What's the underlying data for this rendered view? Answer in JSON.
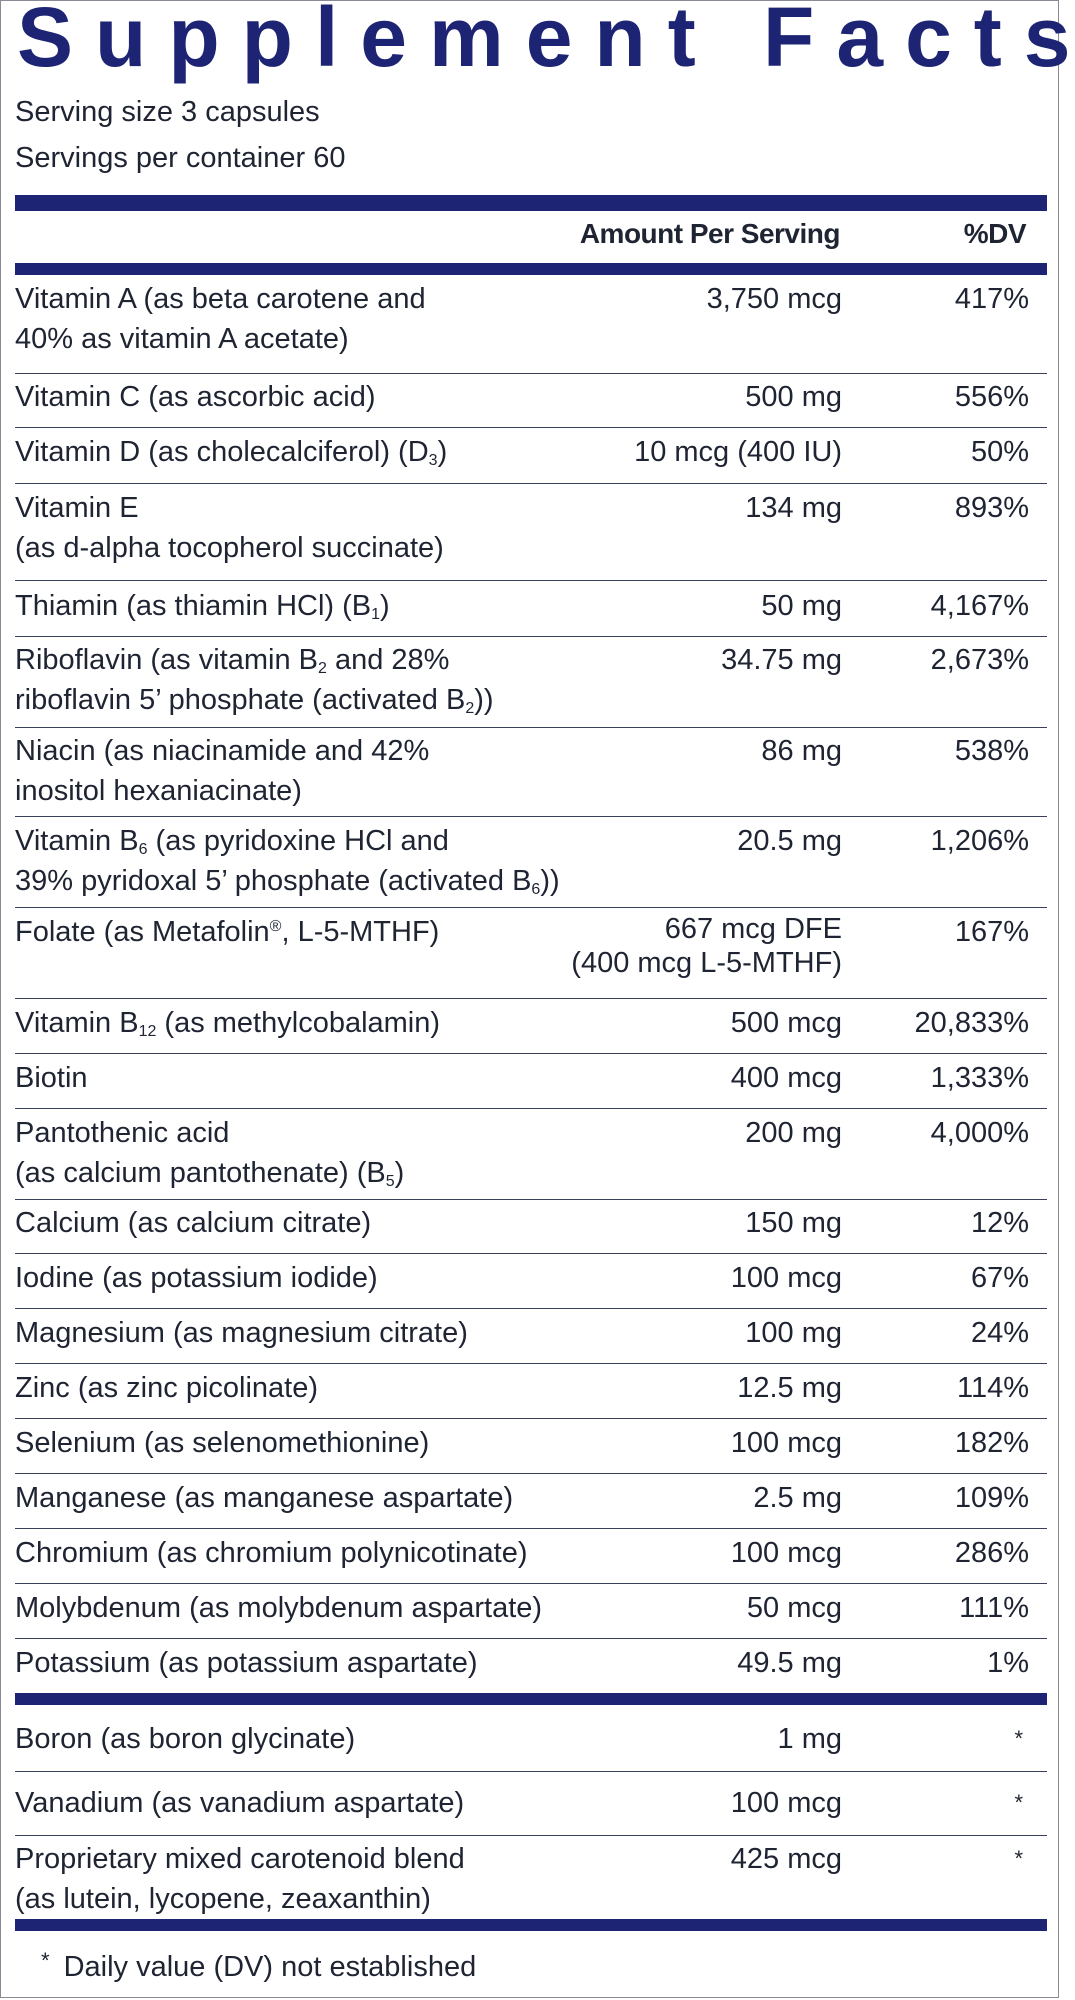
{
  "title": "Supplement Facts",
  "serving_size": "Serving size 3 capsules",
  "servings_per_container": "Servings per container  60",
  "header": {
    "amount": "Amount Per Serving",
    "dv": "%DV"
  },
  "colors": {
    "navy": "#1c2473",
    "text": "#1f2433"
  },
  "rows": [
    {
      "name_parts": [
        "Vitamin A (as beta carotene and",
        "40% as vitamin A acetate)"
      ],
      "amount": "3,750 mcg",
      "dv": "417%"
    },
    {
      "name": "Vitamin C (as ascorbic acid)",
      "amount": "500 mg",
      "dv": "556%"
    },
    {
      "name_pre": "Vitamin D (as cholecalciferol) (D",
      "name_sub": "3",
      "name_post": ")",
      "amount": "10 mcg (400 IU)",
      "dv": "50%"
    },
    {
      "name_parts": [
        "Vitamin E",
        "(as d-alpha tocopherol succinate)"
      ],
      "amount": "134 mg",
      "dv": "893%"
    },
    {
      "name_pre": "Thiamin (as thiamin HCl) (B",
      "name_sub": "1",
      "name_post": ")",
      "amount": "50 mg",
      "dv": "4,167%"
    },
    {
      "name_l1_pre": "Riboflavin (as vitamin B",
      "name_l1_sub": "2",
      "name_l1_post": " and 28%",
      "name_l2_pre": "riboflavin 5’ phosphate (activated B",
      "name_l2_sub": "2",
      "name_l2_post": "))",
      "amount": "34.75 mg",
      "dv": "2,673%"
    },
    {
      "name_parts": [
        "Niacin (as niacinamide and 42%",
        "inositol hexaniacinate)"
      ],
      "amount": "86 mg",
      "dv": "538%"
    },
    {
      "name_l1_pre": "Vitamin B",
      "name_l1_sub": "6",
      "name_l1_post": " (as pyridoxine HCl and",
      "name_l2_pre": "39% pyridoxal 5’ phosphate (activated B",
      "name_l2_sub": "6",
      "name_l2_post": "))",
      "amount": "20.5 mg",
      "dv": "1,206%"
    },
    {
      "name_pre": "Folate (as Metafolin",
      "name_sup": "®",
      "name_post": ", L-5-MTHF)",
      "amount": "667 mcg DFE",
      "amount_line2": "(400 mcg L-5-MTHF)",
      "dv": "167%"
    },
    {
      "name_pre": "Vitamin B",
      "name_sub": "12",
      "name_post": " (as methylcobalamin)",
      "amount": "500 mcg",
      "dv": "20,833%"
    },
    {
      "name": "Biotin",
      "amount": "400 mcg",
      "dv": "1,333%"
    },
    {
      "name_l1": "Pantothenic acid",
      "name_l2_pre": "(as calcium pantothenate) (B",
      "name_l2_sub": "5",
      "name_l2_post": ")",
      "amount": "200 mg",
      "dv": "4,000%"
    },
    {
      "name": "Calcium (as calcium citrate)",
      "amount": "150 mg",
      "dv": "12%"
    },
    {
      "name": "Iodine (as potassium iodide)",
      "amount": "100 mcg",
      "dv": "67%"
    },
    {
      "name": "Magnesium (as magnesium citrate)",
      "amount": "100 mg",
      "dv": "24%"
    },
    {
      "name": "Zinc (as zinc picolinate)",
      "amount": "12.5 mg",
      "dv": "114%"
    },
    {
      "name": "Selenium (as selenomethionine)",
      "amount": "100 mcg",
      "dv": "182%"
    },
    {
      "name": "Manganese (as manganese aspartate)",
      "amount": "2.5 mg",
      "dv": "109%"
    },
    {
      "name": "Chromium (as chromium polynicotinate)",
      "amount": "100 mcg",
      "dv": "286%"
    },
    {
      "name": "Molybdenum (as molybdenum aspartate)",
      "amount": "50 mcg",
      "dv": "111%"
    },
    {
      "name": "Potassium (as potassium aspartate)",
      "amount": "49.5 mg",
      "dv": "1%"
    }
  ],
  "other_rows": [
    {
      "name": "Boron (as boron glycinate)",
      "amount": "1 mg",
      "dv": "*"
    },
    {
      "name": "Vanadium (as vanadium aspartate)",
      "amount": "100 mcg",
      "dv": "*"
    },
    {
      "name_parts": [
        "Proprietary mixed carotenoid blend",
        "(as lutein, lycopene, zeaxanthin)"
      ],
      "amount": "425 mcg",
      "dv": "*"
    }
  ],
  "footnote": {
    "star": "*",
    "text": "Daily value (DV) not established"
  }
}
